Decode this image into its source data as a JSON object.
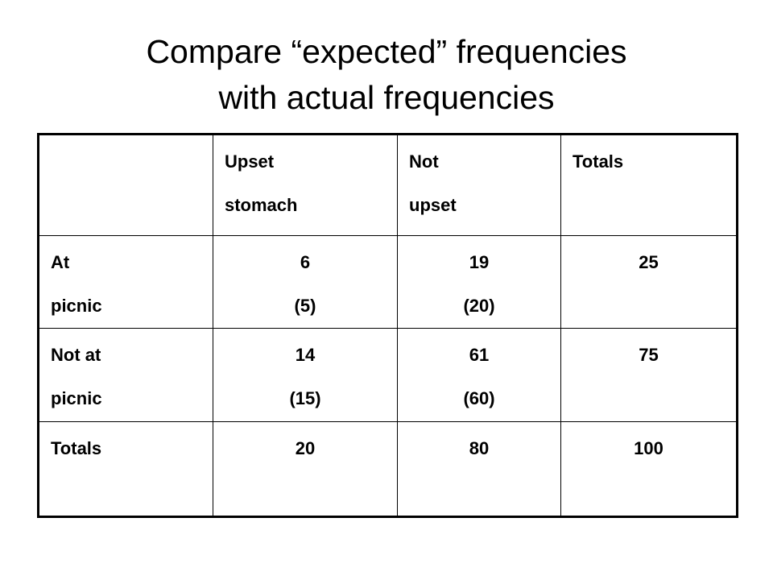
{
  "title": {
    "lines": [
      "Compare “expected” frequencies",
      "with actual frequencies"
    ]
  },
  "table": {
    "header": [
      [
        "Upset",
        "stomach"
      ],
      [
        "Not",
        "upset"
      ],
      [
        "Totals"
      ]
    ],
    "rows": [
      {
        "label": [
          "At",
          "picnic"
        ],
        "cells": [
          [
            "6",
            "(5)"
          ],
          [
            "19",
            "(20)"
          ],
          [
            "25"
          ]
        ]
      },
      {
        "label": [
          "Not at",
          "picnic"
        ],
        "cells": [
          [
            "14",
            "(15)"
          ],
          [
            "61",
            "(60)"
          ],
          [
            "75"
          ]
        ]
      },
      {
        "label": [
          "Totals"
        ],
        "cells": [
          [
            "20"
          ],
          [
            "80"
          ],
          [
            "100"
          ]
        ]
      }
    ]
  }
}
